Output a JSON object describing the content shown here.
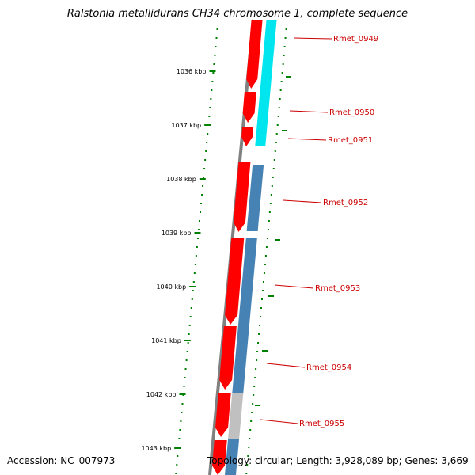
{
  "title": "Ralstonia metallidurans CH34 chromosome 1, complete sequence",
  "accession": "Accession: NC_007973",
  "summary": "Topology: circular; Length: 3,928,089 bp; Genes: 3,669",
  "colors": {
    "backbone": "#808080",
    "forward_gene": "#ff0000",
    "cyan_track": "#00e5ee",
    "blue_track": "#4682b4",
    "grey_track": "#c0c0c0",
    "tick": "#008000",
    "label": "#cc0000"
  },
  "ruler": [
    {
      "label": "1036 kbp"
    },
    {
      "label": "1037 kbp"
    },
    {
      "label": "1038 kbp"
    },
    {
      "label": "1039 kbp"
    },
    {
      "label": "1040 kbp"
    },
    {
      "label": "1041 kbp"
    },
    {
      "label": "1042 kbp"
    },
    {
      "label": "1043 kbp"
    }
  ],
  "genes": [
    {
      "label": "Rmet_0949"
    },
    {
      "label": "Rmet_0950"
    },
    {
      "label": "Rmet_0951"
    },
    {
      "label": "Rmet_0952"
    },
    {
      "label": "Rmet_0953"
    },
    {
      "label": "Rmet_0954"
    },
    {
      "label": "Rmet_0955"
    }
  ]
}
